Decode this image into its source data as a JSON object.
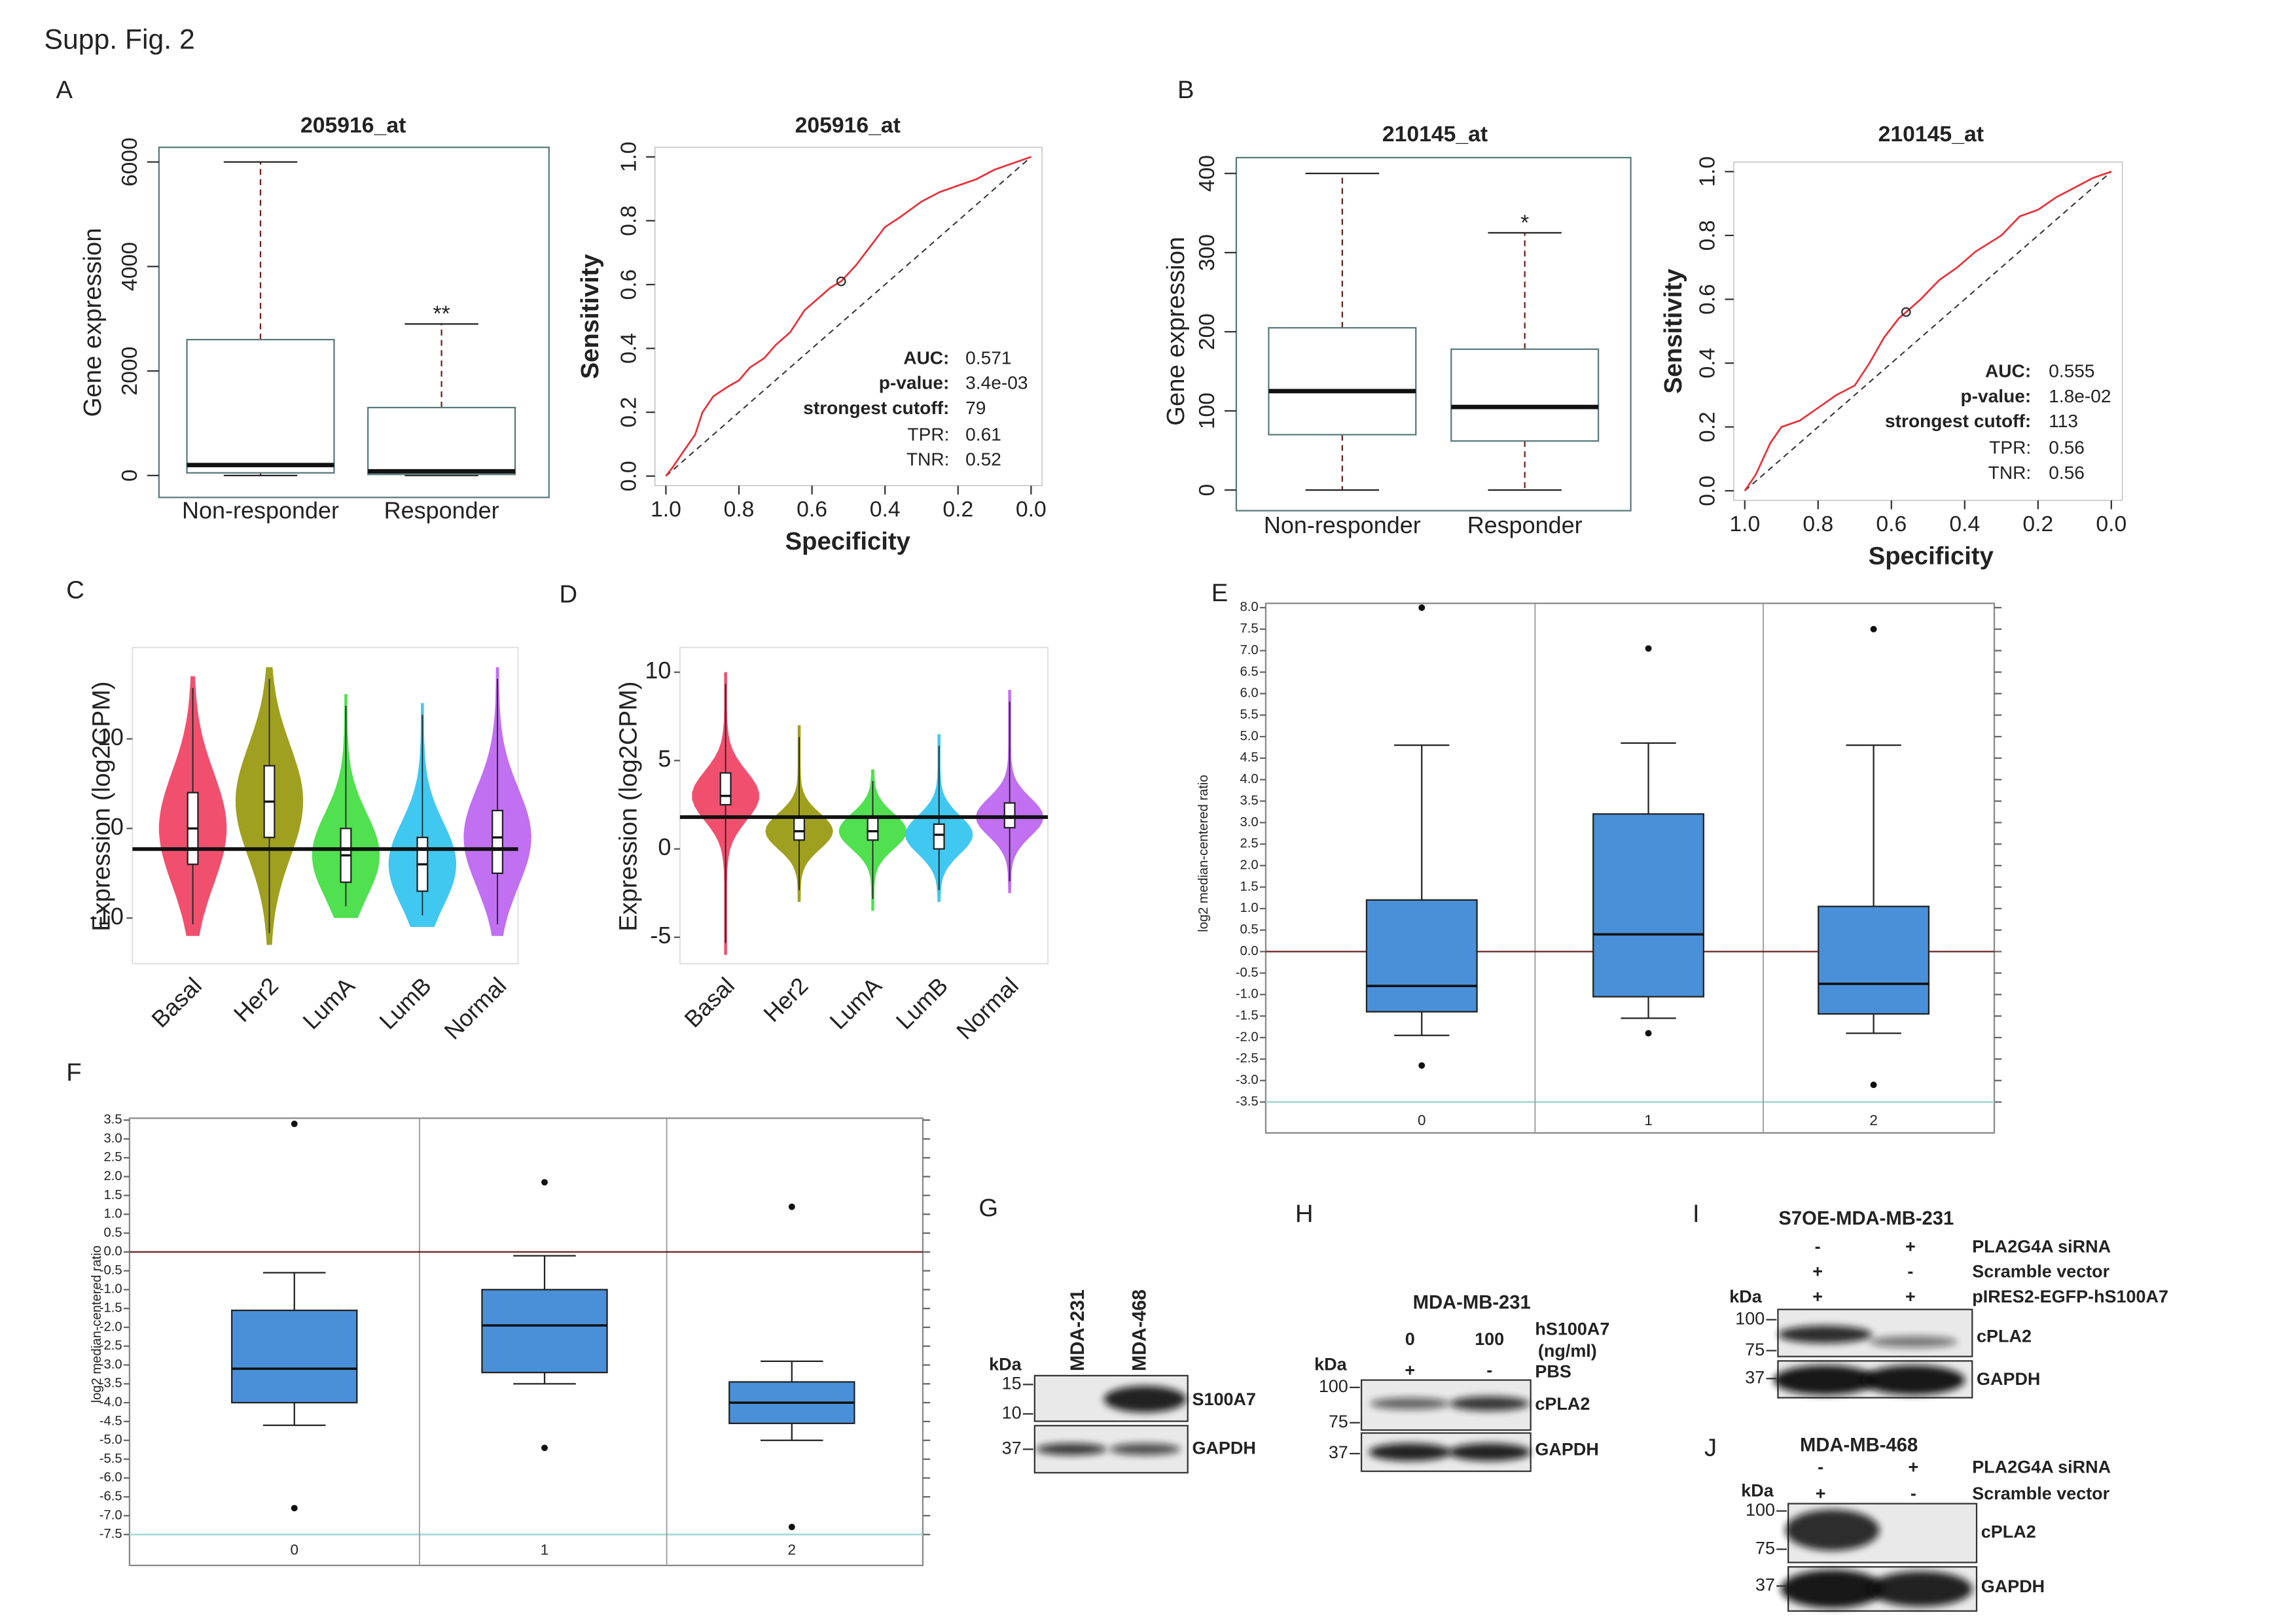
{
  "figure_title": "Supp. Fig. 2",
  "chart_data": [
    {
      "panel": "A",
      "type": "box",
      "title": "205916_at",
      "y_label": "Gene expression",
      "categories": [
        "Non-responder",
        "Responder"
      ],
      "boxes": [
        {
          "whislo": 0,
          "q1": 50,
          "med": 200,
          "q3": 2600,
          "whishi": 6000,
          "fliers": []
        },
        {
          "whislo": 0,
          "q1": 20,
          "med": 80,
          "q3": 1300,
          "whishi": 2900,
          "fliers": []
        }
      ],
      "annotations": [
        {
          "text": "**",
          "category": "Responder"
        }
      ],
      "color": "#ffffff",
      "whisker_style": "dashed",
      "ylim": [
        -420,
        6280
      ],
      "yticks": [
        0,
        2000,
        4000,
        6000
      ]
    },
    {
      "type": "roc",
      "title": "205916_at",
      "x_label": "Specificity",
      "y_label": "Sensitivity",
      "x": [
        1,
        0.98,
        0.95,
        0.92,
        0.9,
        0.87,
        0.83,
        0.8,
        0.77,
        0.73,
        0.7,
        0.66,
        0.62,
        0.58,
        0.55,
        0.52,
        0.48,
        0.44,
        0.4,
        0.36,
        0.3,
        0.25,
        0.2,
        0.15,
        0.1,
        0.05,
        0
      ],
      "values": [
        0,
        0.03,
        0.08,
        0.13,
        0.2,
        0.25,
        0.28,
        0.3,
        0.34,
        0.37,
        0.41,
        0.45,
        0.52,
        0.56,
        0.59,
        0.61,
        0.66,
        0.72,
        0.78,
        0.81,
        0.86,
        0.89,
        0.91,
        0.93,
        0.96,
        0.98,
        1
      ],
      "color": "#e8303a",
      "xlim": [
        1.03,
        -0.03
      ],
      "ylim": [
        -0.03,
        1.03
      ],
      "xticks": [
        {
          "value": 1,
          "label": "1.0"
        },
        0.8,
        0.6,
        0.4,
        0.2,
        {
          "value": 0,
          "label": "0.0"
        }
      ],
      "yticks": [
        {
          "value": 0,
          "label": "0.0"
        },
        0.2,
        0.4,
        0.6,
        0.8,
        {
          "value": 1,
          "label": "1.0"
        }
      ],
      "stats": [
        {
          "name": "AUC:",
          "value": 0.571
        },
        {
          "name": "p-value:",
          "value": "3.4e-03"
        },
        {
          "name": "strongest cutoff:",
          "value": 79
        },
        {
          "name": "TPR:",
          "value": 0.61
        },
        {
          "name": "TNR:",
          "value": 0.52
        }
      ]
    },
    {
      "panel": "B",
      "type": "box",
      "title": "210145_at",
      "y_label": "Gene expression",
      "categories": [
        "Non-responder",
        "Responder"
      ],
      "boxes": [
        {
          "whislo": 0,
          "q1": 70,
          "med": 125,
          "q3": 205,
          "whishi": 400,
          "fliers": []
        },
        {
          "whislo": 0,
          "q1": 62,
          "med": 105,
          "q3": 178,
          "whishi": 325,
          "fliers": []
        }
      ],
      "annotations": [
        {
          "text": "*",
          "category": "Responder"
        }
      ],
      "color": "#ffffff",
      "whisker_style": "dashed",
      "ylim": [
        -26,
        420
      ],
      "yticks": [
        0,
        100,
        200,
        300,
        400
      ]
    },
    {
      "type": "roc",
      "title": "210145_at",
      "x_label": "Specificity",
      "y_label": "Sensitivity",
      "x": [
        1,
        0.97,
        0.93,
        0.9,
        0.85,
        0.8,
        0.75,
        0.7,
        0.66,
        0.62,
        0.58,
        0.56,
        0.52,
        0.47,
        0.42,
        0.37,
        0.3,
        0.25,
        0.2,
        0.15,
        0.1,
        0.05,
        0
      ],
      "values": [
        0,
        0.05,
        0.15,
        0.2,
        0.22,
        0.26,
        0.3,
        0.33,
        0.4,
        0.48,
        0.54,
        0.56,
        0.6,
        0.66,
        0.7,
        0.75,
        0.8,
        0.86,
        0.88,
        0.92,
        0.95,
        0.98,
        1
      ],
      "color": "#e8303a",
      "xlim": [
        1.03,
        -0.03
      ],
      "ylim": [
        -0.03,
        1.03
      ],
      "xticks": [
        {
          "value": 1,
          "label": "1.0"
        },
        0.8,
        0.6,
        0.4,
        0.2,
        {
          "value": 0,
          "label": "0.0"
        }
      ],
      "yticks": [
        {
          "value": 0,
          "label": "0.0"
        },
        0.2,
        0.4,
        0.6,
        0.8,
        {
          "value": 1,
          "label": "1.0"
        }
      ],
      "stats": [
        {
          "name": "AUC:",
          "value": 0.555
        },
        {
          "name": "p-value:",
          "value": "1.8e-02"
        },
        {
          "name": "strongest cutoff:",
          "value": 113
        },
        {
          "name": "TPR:",
          "value": 0.56
        },
        {
          "name": "TNR:",
          "value": 0.56
        }
      ]
    },
    {
      "panel": "C",
      "type": "violin",
      "y_label": "Expression (log2CPM)",
      "categories": [
        "Basal",
        "Her2",
        "LumA",
        "LumB",
        "Normal"
      ],
      "colors": [
        "#f0506e",
        "#a0a020",
        "#50e050",
        "#40c8f0",
        "#c070f0"
      ],
      "boxes": [
        {
          "whislo": -12,
          "q1": -4,
          "med": 0,
          "q3": 4,
          "whishi": 17
        },
        {
          "whislo": -13,
          "q1": -1,
          "med": 3,
          "q3": 7,
          "whishi": 18
        },
        {
          "whislo": -10,
          "q1": -6,
          "med": -3,
          "q3": 0,
          "whishi": 15
        },
        {
          "whislo": -11,
          "q1": -7,
          "med": -4,
          "q3": -1,
          "whishi": 14
        },
        {
          "whislo": -12,
          "q1": -5,
          "med": -1,
          "q3": 2,
          "whishi": 18
        }
      ],
      "reference_line": -2.3,
      "ylim": [
        -15.1,
        20.2
      ],
      "yticks": [
        -10,
        0,
        10
      ]
    },
    {
      "panel": "D",
      "type": "violin",
      "y_label": "Expression (log2CPM)",
      "categories": [
        "Basal",
        "Her2",
        "LumA",
        "LumB",
        "Normal"
      ],
      "colors": [
        "#f0506e",
        "#a0a020",
        "#50e050",
        "#40c8f0",
        "#c070f0"
      ],
      "boxes": [
        {
          "whislo": -6,
          "q1": 2.5,
          "med": 3,
          "q3": 4.3,
          "whishi": 10
        },
        {
          "whislo": -3,
          "q1": 0.5,
          "med": 1,
          "q3": 1.8,
          "whishi": 7
        },
        {
          "whislo": -3.5,
          "q1": 0.5,
          "med": 1,
          "q3": 1.8,
          "whishi": 4.5
        },
        {
          "whislo": -3,
          "q1": 0,
          "med": 0.8,
          "q3": 1.4,
          "whishi": 6.5
        },
        {
          "whislo": -2.5,
          "q1": 1.2,
          "med": 1.8,
          "q3": 2.6,
          "whishi": 9
        }
      ],
      "reference_line": 1.8,
      "ylim": [
        -6.5,
        11.4
      ],
      "yticks": [
        -5,
        0,
        5,
        10
      ]
    },
    {
      "panel": "E",
      "type": "box",
      "y_label": "log2 median-centered ratio",
      "categories": [
        "0",
        "1",
        "2"
      ],
      "boxes": [
        {
          "whislo": -1.95,
          "q1": -1.4,
          "med": -0.8,
          "q3": 1.2,
          "whishi": 4.8,
          "fliers": [
            8,
            -2.65
          ]
        },
        {
          "whislo": -1.55,
          "q1": -1.05,
          "med": 0.4,
          "q3": 3.2,
          "whishi": 4.85,
          "fliers": [
            7.05,
            -1.9
          ]
        },
        {
          "whislo": -1.9,
          "q1": -1.45,
          "med": -0.75,
          "q3": 1.05,
          "whishi": 4.8,
          "fliers": [
            7.5,
            -3.1
          ]
        }
      ],
      "color": "#4a90d9",
      "whisker_style": "solid",
      "reference_line": 0,
      "ylim": [
        -3.5,
        8.1
      ],
      "yticks": [
        -3.5,
        {
          "value": -3,
          "label": "-3.0"
        },
        -2.5,
        {
          "value": -2,
          "label": "-2.0"
        },
        -1.5,
        {
          "value": -1,
          "label": "-1.0"
        },
        -0.5,
        {
          "value": 0,
          "label": "0.0"
        },
        0.5,
        {
          "value": 1,
          "label": "1.0"
        },
        1.5,
        {
          "value": 2,
          "label": "2.0"
        },
        2.5,
        {
          "value": 3,
          "label": "3.0"
        },
        3.5,
        {
          "value": 4,
          "label": "4.0"
        },
        4.5,
        {
          "value": 5,
          "label": "5.0"
        },
        5.5,
        {
          "value": 6,
          "label": "6.0"
        },
        6.5,
        {
          "value": 7,
          "label": "7.0"
        },
        7.5,
        {
          "value": 8,
          "label": "8.0"
        }
      ]
    },
    {
      "panel": "F",
      "type": "box",
      "y_label": "log2 median-centered ratio",
      "categories": [
        "0",
        "1",
        "2"
      ],
      "boxes": [
        {
          "whislo": -4.6,
          "q1": -4.0,
          "med": -3.1,
          "q3": -1.55,
          "whishi": -0.55,
          "fliers": [
            3.4,
            -6.8
          ]
        },
        {
          "whislo": -3.5,
          "q1": -3.2,
          "med": -1.95,
          "q3": -1.0,
          "whishi": -0.1,
          "fliers": [
            1.85,
            -5.2
          ]
        },
        {
          "whislo": -5.0,
          "q1": -4.55,
          "med": -4.0,
          "q3": -3.45,
          "whishi": -2.9,
          "fliers": [
            1.2,
            -7.3
          ]
        }
      ],
      "color": "#4a90d9",
      "whisker_style": "solid",
      "reference_line": 0,
      "ylim": [
        -7.5,
        3.55
      ],
      "yticks": [
        -7.5,
        {
          "value": -7,
          "label": "-7.0"
        },
        -6.5,
        {
          "value": -6,
          "label": "-6.0"
        },
        -5.5,
        {
          "value": -5,
          "label": "-5.0"
        },
        -4.5,
        {
          "value": -4,
          "label": "-4.0"
        },
        -3.5,
        {
          "value": -3,
          "label": "-3.0"
        },
        -2.5,
        {
          "value": -2,
          "label": "-2.0"
        },
        -1.5,
        {
          "value": -1,
          "label": "-1.0"
        },
        -0.5,
        {
          "value": 0,
          "label": "0.0"
        },
        0.5,
        {
          "value": 1,
          "label": "1.0"
        },
        1.5,
        {
          "value": 2,
          "label": "2.0"
        },
        2.5,
        {
          "value": 3,
          "label": "3.0"
        },
        3.5
      ]
    }
  ],
  "blots": [
    {
      "panel": "G",
      "lanes": [
        "MDA-231",
        "MDA-468"
      ],
      "kda": "kDa",
      "markers": [
        15,
        10,
        37
      ],
      "bands": [
        "S100A7",
        "GAPDH"
      ]
    },
    {
      "panel": "H",
      "title": "MDA-MB-231",
      "rows": [
        {
          "signs": [
            0,
            100
          ],
          "label": "hS100A7"
        },
        {
          "signs": [
            "+",
            "-"
          ],
          "label": "PBS"
        }
      ],
      "unit": "(ng/ml)",
      "kda": "kDa",
      "markers": [
        100,
        75,
        37
      ],
      "bands": [
        "cPLA2",
        "GAPDH"
      ]
    },
    {
      "panel": "I",
      "title": "S7OE-MDA-MB-231",
      "rows": [
        {
          "signs": [
            "-",
            "+"
          ],
          "label": "PLA2G4A siRNA"
        },
        {
          "signs": [
            "+",
            "-"
          ],
          "label": "Scramble vector"
        },
        {
          "signs": [
            "+",
            "+"
          ],
          "label": "pIRES2-EGFP-hS100A7"
        }
      ],
      "kda": "kDa",
      "markers": [
        100,
        75,
        37
      ],
      "bands": [
        "cPLA2",
        "GAPDH"
      ]
    },
    {
      "panel": "J",
      "title": "MDA-MB-468",
      "rows": [
        {
          "signs": [
            "-",
            "+"
          ],
          "label": "PLA2G4A siRNA"
        },
        {
          "signs": [
            "+",
            "-"
          ],
          "label": "Scramble vector"
        }
      ],
      "kda": "kDa",
      "markers": [
        100,
        75,
        37
      ],
      "bands": [
        "cPLA2",
        "GAPDH"
      ]
    }
  ]
}
